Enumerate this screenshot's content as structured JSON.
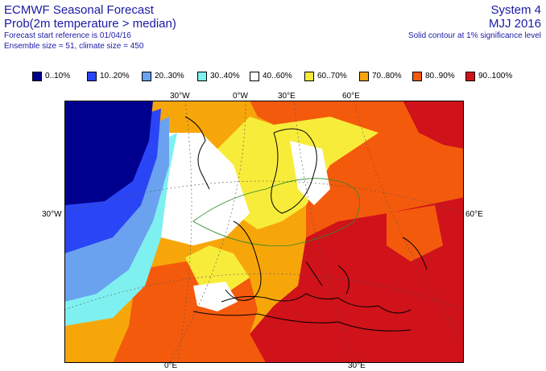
{
  "header": {
    "title": "ECMWF Seasonal Forecast",
    "subtitle": "Prob(2m temperature > median)",
    "line3": "Forecast start reference is 01/04/16",
    "line4": "Ensemble size = 51, climate size = 450",
    "system": "System 4",
    "period": "MJJ 2016",
    "note": "Solid contour at 1% significance level"
  },
  "legend": [
    {
      "label": "0..10%",
      "color": "#00008f"
    },
    {
      "label": "10..20%",
      "color": "#2a45f5"
    },
    {
      "label": "20..30%",
      "color": "#6aa2ef"
    },
    {
      "label": "30..40%",
      "color": "#7ff0f0"
    },
    {
      "label": "40..60%",
      "color": "#ffffff"
    },
    {
      "label": "60..70%",
      "color": "#f8ec3a"
    },
    {
      "label": "70..80%",
      "color": "#f7a60a"
    },
    {
      "label": "80..90%",
      "color": "#f45a0c"
    },
    {
      "label": "90..100%",
      "color": "#d0121a"
    }
  ],
  "axes": {
    "top": [
      "30°W",
      "0°W",
      "30°E",
      "60°E"
    ],
    "left": "30°W",
    "right": "60°E",
    "bottom": [
      "0°E",
      "30°E"
    ]
  }
}
